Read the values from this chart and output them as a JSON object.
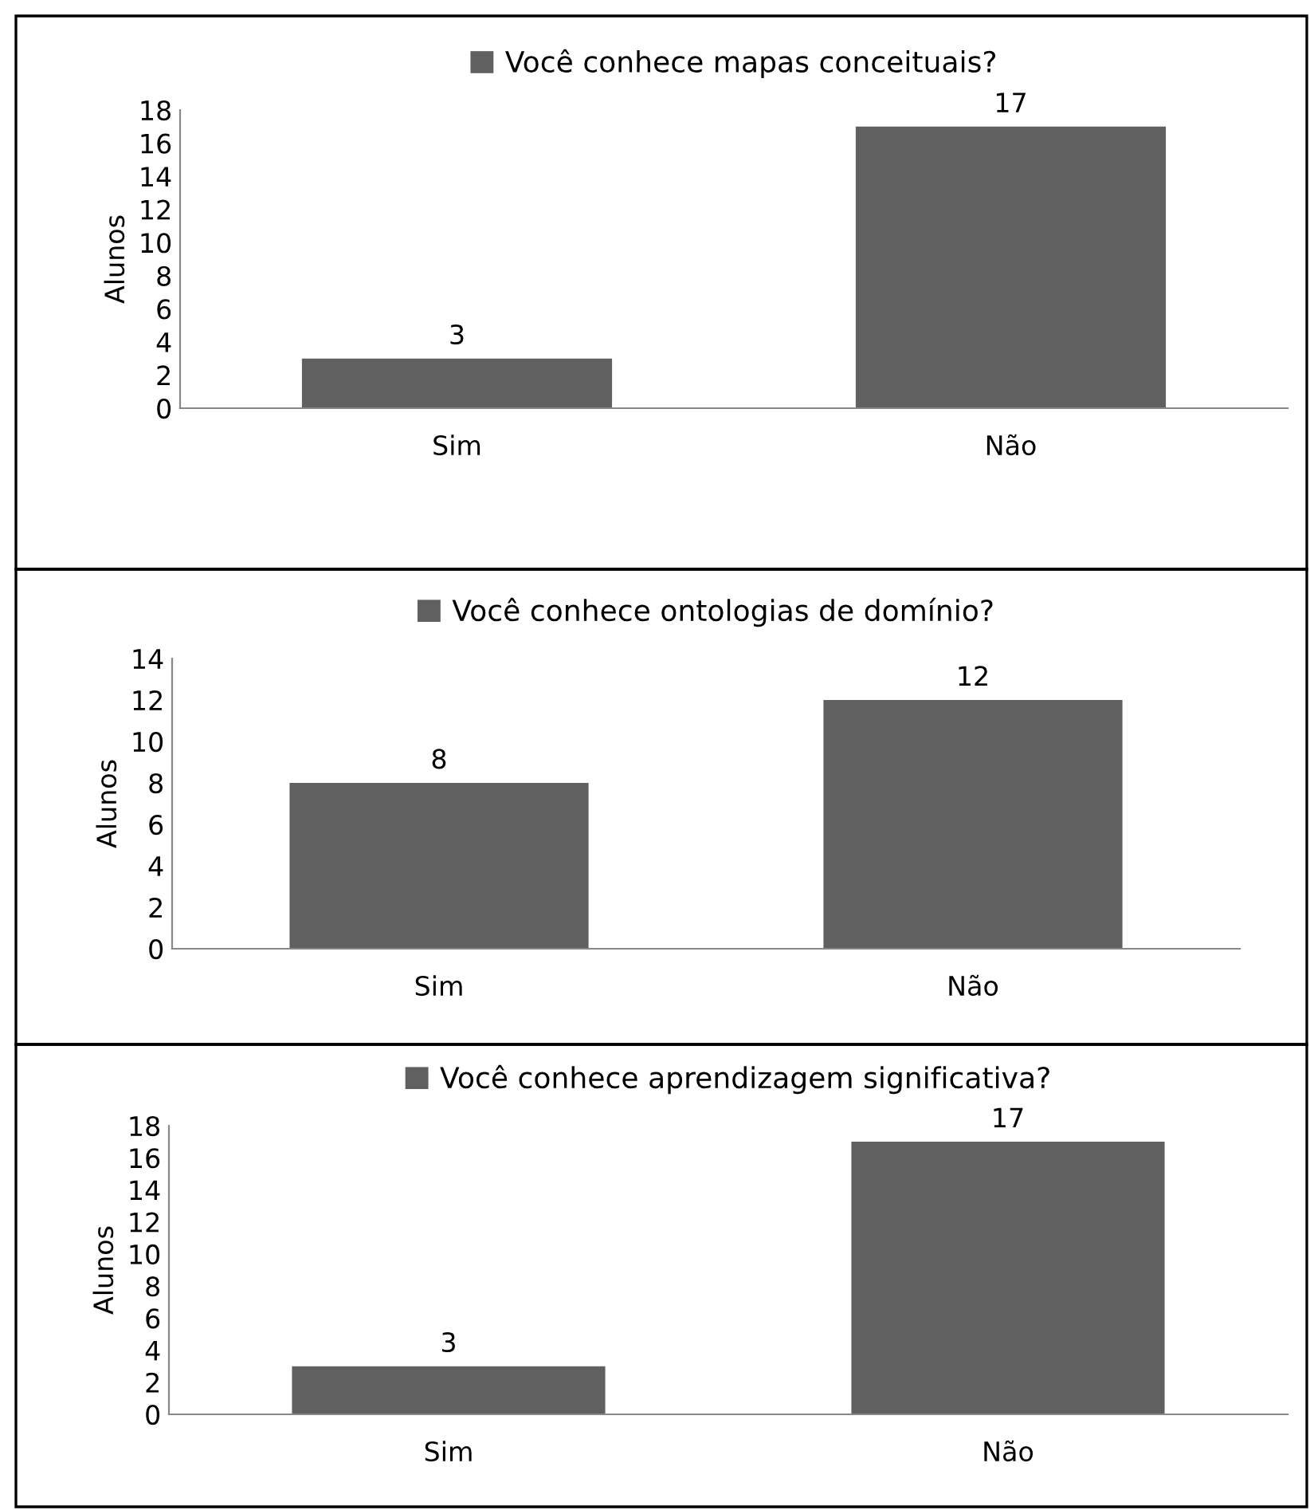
{
  "chart_data": [
    {
      "type": "bar",
      "categories": [
        "Sim",
        "Não"
      ],
      "ylabel": "Alunos",
      "ylim": [
        0,
        18
      ],
      "yticks": [
        0,
        2,
        4,
        6,
        8,
        10,
        12,
        14,
        16,
        18
      ],
      "series": [
        {
          "name": "Você conhece mapas conceituais?",
          "color": "#606060",
          "values": [
            3,
            17
          ]
        }
      ],
      "data_labels": true,
      "legend": "top",
      "grid": false
    },
    {
      "type": "bar",
      "categories": [
        "Sim",
        "Não"
      ],
      "ylabel": "Alunos",
      "ylim": [
        0,
        14
      ],
      "yticks": [
        0,
        2,
        4,
        6,
        8,
        10,
        12,
        14
      ],
      "series": [
        {
          "name": "Você conhece ontologias de domínio?",
          "color": "#606060",
          "values": [
            8,
            12
          ]
        }
      ],
      "data_labels": true,
      "legend": "top",
      "grid": false
    },
    {
      "type": "bar",
      "categories": [
        "Sim",
        "Não"
      ],
      "ylabel": "Alunos",
      "ylim": [
        0,
        18
      ],
      "yticks": [
        0,
        2,
        4,
        6,
        8,
        10,
        12,
        14,
        16,
        18
      ],
      "series": [
        {
          "name": "Você conhece aprendizagem significativa?",
          "color": "#606060",
          "values": [
            3,
            17
          ]
        }
      ],
      "data_labels": true,
      "legend": "top",
      "grid": false
    }
  ]
}
